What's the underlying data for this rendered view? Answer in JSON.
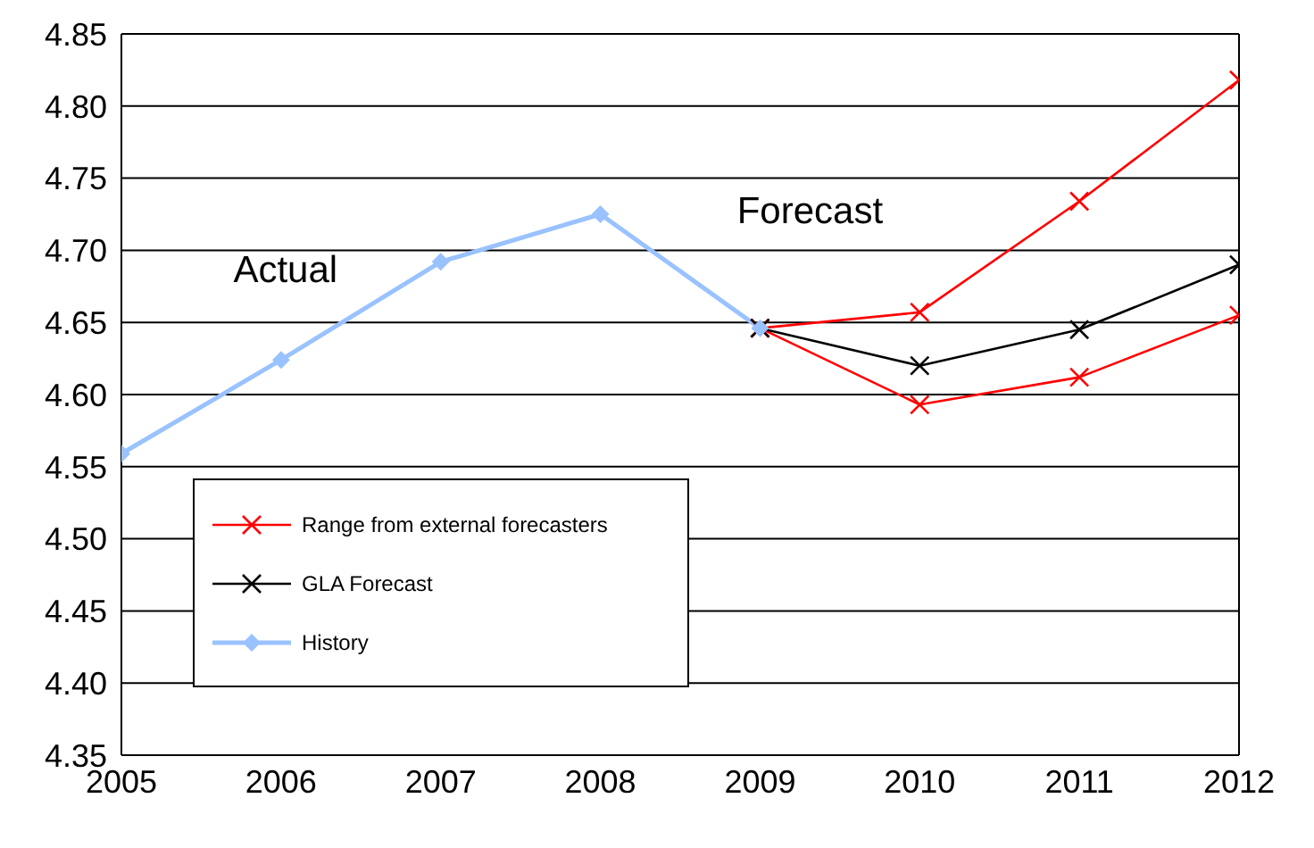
{
  "chart_data": {
    "type": "line",
    "xlim": [
      2005,
      2012
    ],
    "xticks": [
      2005,
      2006,
      2007,
      2008,
      2009,
      2010,
      2011,
      2012
    ],
    "ylim": [
      4.35,
      4.85
    ],
    "yticks": [
      4.35,
      {
        "value": 4.4,
        "label": "4.40"
      },
      4.45,
      {
        "value": 4.5,
        "label": "4.50"
      },
      4.55,
      {
        "value": 4.6,
        "label": "4.60"
      },
      4.65,
      {
        "value": 4.7,
        "label": "4.70"
      },
      4.75,
      {
        "value": 4.8,
        "label": "4.80"
      },
      4.85
    ],
    "grid": "y",
    "legend": "bottom left",
    "annotations": [
      "Actual",
      "Forecast"
    ],
    "series": [
      {
        "name": "Range from external forecasters",
        "color": "#ff0000",
        "marker": "cross",
        "x": [
          2009,
          2010,
          2011,
          2012
        ],
        "values": [
          4.646,
          4.657,
          4.734,
          4.818
        ]
      },
      {
        "color": "#ff0000",
        "marker": "cross",
        "x": [
          2009,
          2010,
          2011,
          2012
        ],
        "values": [
          4.646,
          4.593,
          4.612,
          4.655
        ]
      },
      {
        "name": "GLA Forecast",
        "color": "#000000",
        "marker": "cross",
        "x": [
          2009,
          2010,
          2011,
          2012
        ],
        "values": [
          4.646,
          4.62,
          4.645,
          4.69
        ]
      },
      {
        "name": "History",
        "color": "#99c2ff",
        "marker": "diamond",
        "x": [
          2005,
          2006,
          2007,
          2008,
          2009
        ],
        "values": [
          4.559,
          4.624,
          4.692,
          4.725,
          4.646
        ]
      }
    ]
  }
}
